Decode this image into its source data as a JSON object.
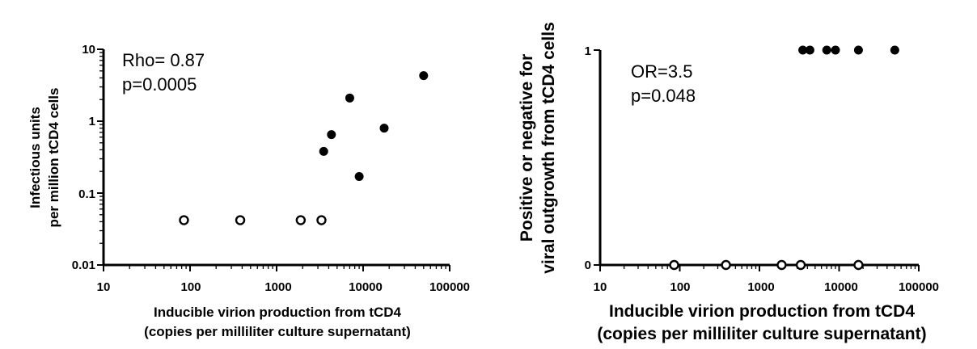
{
  "chart_data": [
    {
      "type": "scatter",
      "xscale": "log",
      "yscale": "log",
      "xlim": [
        10,
        100000
      ],
      "ylim": [
        0.01,
        10
      ],
      "x_ticks": [
        "10",
        "100",
        "1000",
        "10000",
        "100000"
      ],
      "y_ticks": [
        "0.01",
        "0.1",
        "1",
        "10"
      ],
      "xlabel": [
        "Inducible virion production from tCD4",
        "(copies per milliliter culture supernatant)"
      ],
      "ylabel": [
        "Infectious units",
        "per million tCD4 cells"
      ],
      "annotations": [
        "Rho= 0.87",
        "p=0.0005"
      ],
      "series": [
        {
          "marker": "filled-circle",
          "points": [
            [
              3500,
              0.38
            ],
            [
              4300,
              0.65
            ],
            [
              7000,
              2.1
            ],
            [
              9000,
              0.17
            ],
            [
              17500,
              0.8
            ],
            [
              50000,
              4.3
            ]
          ]
        },
        {
          "marker": "open-circle",
          "points": [
            [
              85,
              0.042
            ],
            [
              380,
              0.042
            ],
            [
              1900,
              0.042
            ],
            [
              3300,
              0.042
            ]
          ]
        }
      ],
      "grid": false
    },
    {
      "type": "scatter",
      "xscale": "log",
      "yscale": "linear",
      "xlim": [
        10,
        100000
      ],
      "ylim": [
        0,
        1
      ],
      "x_ticks": [
        "10",
        "100",
        "1000",
        "10000",
        "100000"
      ],
      "y_ticks": [
        "0",
        "1"
      ],
      "xlabel": [
        "Inducible virion production from tCD4",
        "(copies per milliliter culture supernatant)"
      ],
      "ylabel": [
        "Positive or negative for",
        "viral outgrowth from tCD4 cells"
      ],
      "annotations": [
        "OR=3.5",
        "p=0.048"
      ],
      "series": [
        {
          "marker": "filled-circle",
          "points": [
            [
              3500,
              1
            ],
            [
              4300,
              1
            ],
            [
              7000,
              1
            ],
            [
              9000,
              1
            ],
            [
              17500,
              1
            ],
            [
              50000,
              1
            ]
          ]
        },
        {
          "marker": "open-circle",
          "points": [
            [
              85,
              0
            ],
            [
              380,
              0
            ],
            [
              1900,
              0
            ],
            [
              3300,
              0
            ],
            [
              17500,
              0
            ]
          ]
        }
      ],
      "grid": false
    }
  ]
}
